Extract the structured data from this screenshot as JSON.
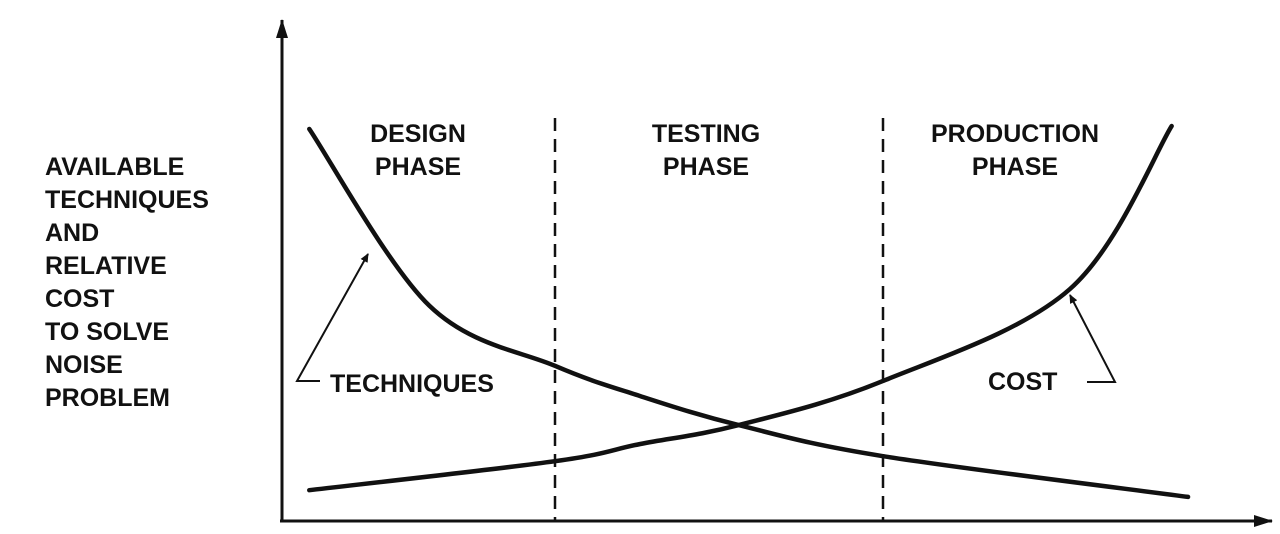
{
  "chart_data": {
    "type": "line",
    "title": "",
    "ylabel_lines": [
      "AVAILABLE",
      "TECHNIQUES",
      "AND",
      "RELATIVE",
      "COST",
      "TO SOLVE",
      "NOISE",
      "PROBLEM"
    ],
    "xlabel": "",
    "grid": false,
    "axis_ticks": false,
    "phases": [
      {
        "lines": [
          "DESIGN",
          "PHASE"
        ]
      },
      {
        "lines": [
          "TESTING",
          "PHASE"
        ]
      },
      {
        "lines": [
          "PRODUCTION",
          "PHASE"
        ]
      }
    ],
    "series": [
      {
        "name": "TECHNIQUES",
        "trend": "decreasing",
        "points": [
          [
            0.1,
            93.1
          ],
          [
            0.54,
            51.0
          ],
          [
            1.0,
            36.7
          ],
          [
            1.26,
            29.5
          ],
          [
            1.56,
            22.6
          ],
          [
            2.0,
            15.2
          ],
          [
            2.93,
            5.5
          ]
        ]
      },
      {
        "name": "COST",
        "trend": "increasing",
        "points": [
          [
            0.1,
            7.1
          ],
          [
            1.0,
            14.0
          ],
          [
            1.26,
            18.1
          ],
          [
            1.56,
            22.6
          ],
          [
            2.0,
            33.1
          ],
          [
            2.57,
            55.0
          ],
          [
            2.88,
            93.8
          ]
        ]
      }
    ],
    "xlim": [
      0,
      3
    ],
    "ylim": [
      0,
      100
    ],
    "colors": {
      "ink": "#111111",
      "background": "#ffffff"
    }
  }
}
